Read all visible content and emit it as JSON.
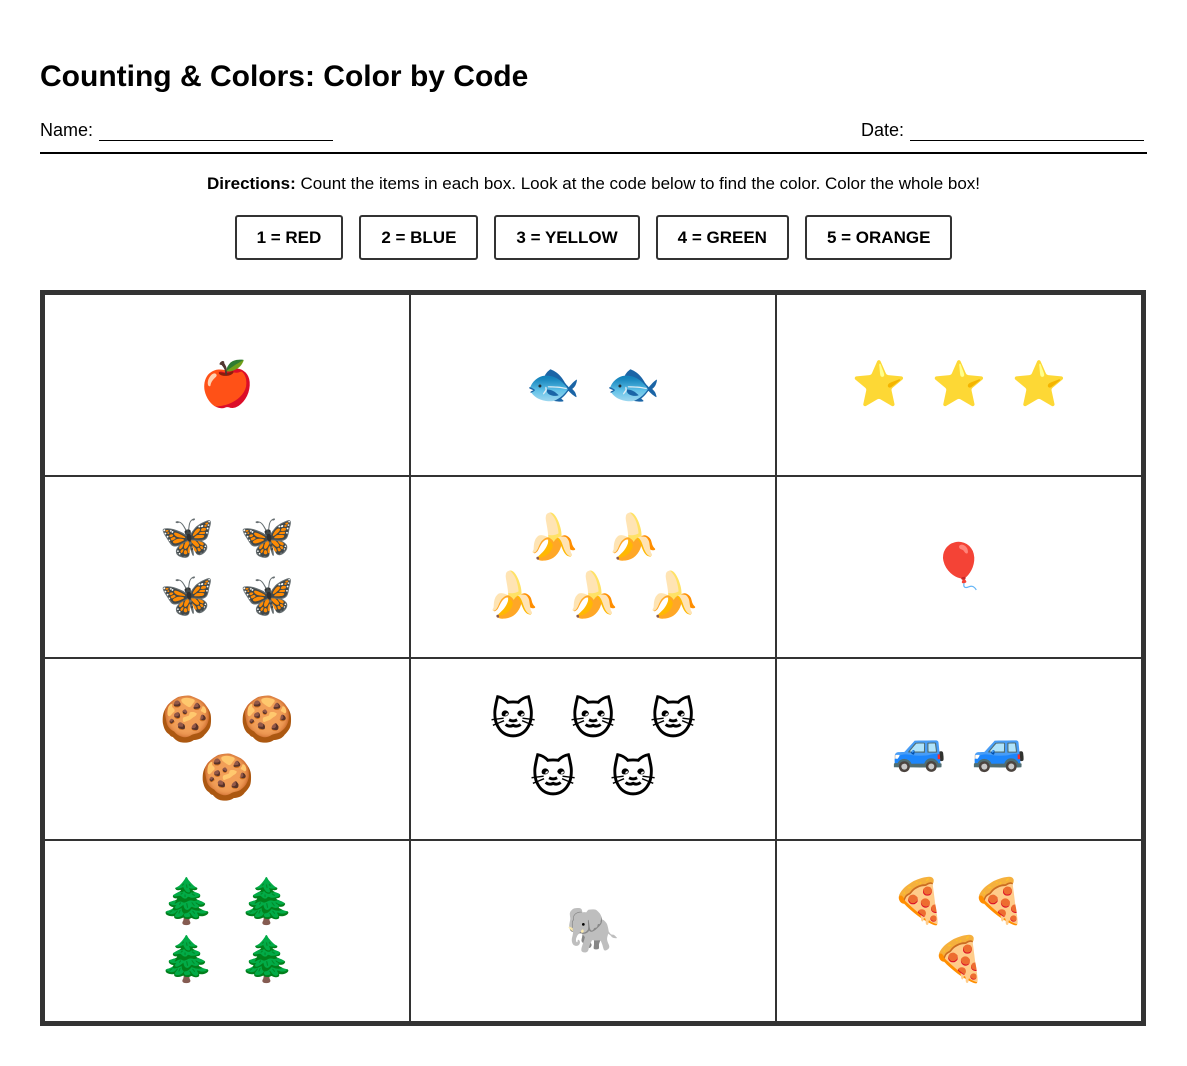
{
  "header": {
    "title": "Counting & Colors: Color by Code",
    "name_label": "Name:",
    "date_label": "Date:"
  },
  "directions": {
    "label": "Directions:",
    "text": "Count the items in each box. Look at the code below to find the color. Color the whole box!"
  },
  "code": [
    "1 = RED",
    "2 = BLUE",
    "3 = YELLOW",
    "4 = GREEN",
    "5 = ORANGE"
  ],
  "grid": {
    "cells": [
      {
        "icon": "🍎",
        "count": 1
      },
      {
        "icon": "🐟",
        "count": 2
      },
      {
        "icon": "⭐",
        "count": 3
      },
      {
        "icon": "🦋",
        "count": 4
      },
      {
        "icon": "🍌",
        "count": 5
      },
      {
        "icon": "🎈",
        "count": 1
      },
      {
        "icon": "🍪",
        "count": 3
      },
      {
        "icon": "🐱",
        "count": 5
      },
      {
        "icon": "🚙",
        "count": 2
      },
      {
        "icon": "🌲",
        "count": 4
      },
      {
        "icon": "🐘",
        "count": 1
      },
      {
        "icon": "🍕",
        "count": 3
      }
    ]
  }
}
